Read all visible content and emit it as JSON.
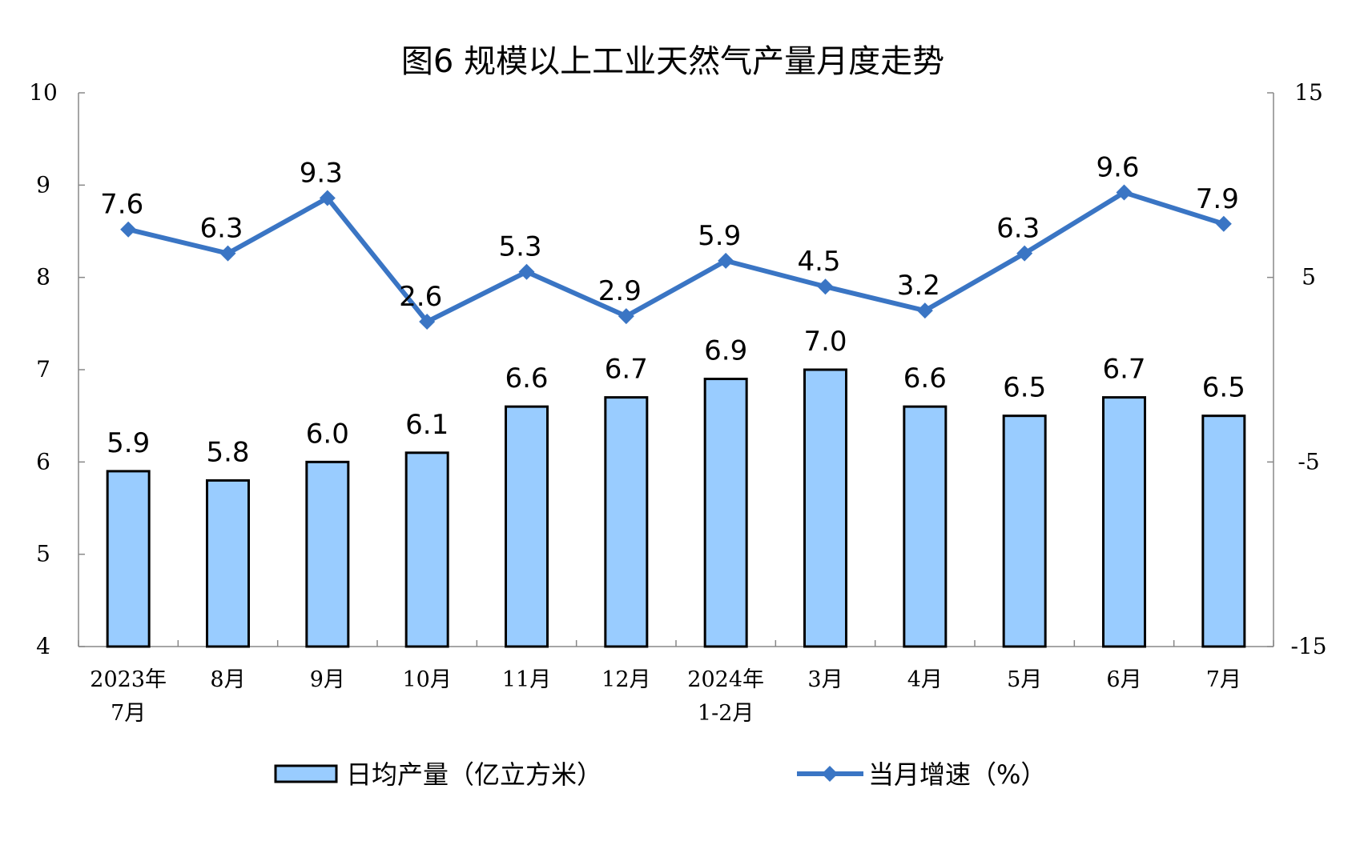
{
  "chart_data": {
    "type": "bar+line",
    "title": "图6  规模以上工业天然气产量月度走势",
    "categories": [
      [
        "2023年",
        "7月"
      ],
      [
        "8月"
      ],
      [
        "9月"
      ],
      [
        "10月"
      ],
      [
        "11月"
      ],
      [
        "12月"
      ],
      [
        "2024年",
        "1-2月"
      ],
      [
        "3月"
      ],
      [
        "4月"
      ],
      [
        "5月"
      ],
      [
        "6月"
      ],
      [
        "7月"
      ]
    ],
    "series": [
      {
        "name": "日均产量（亿立方米）",
        "type": "bar",
        "axis": "left",
        "color": "#99CCFF",
        "values": [
          5.9,
          5.8,
          6.0,
          6.1,
          6.6,
          6.7,
          6.9,
          7.0,
          6.6,
          6.5,
          6.7,
          6.5
        ]
      },
      {
        "name": "当月增速（%）",
        "type": "line",
        "axis": "right",
        "color": "#3A75C4",
        "values": [
          7.6,
          6.3,
          9.3,
          2.6,
          5.3,
          2.9,
          5.9,
          4.5,
          3.2,
          6.3,
          9.6,
          7.9
        ]
      }
    ],
    "left_axis": {
      "range": [
        4,
        10
      ],
      "ticks": [
        4,
        5,
        6,
        7,
        8,
        9,
        10
      ]
    },
    "right_axis": {
      "range": [
        -15,
        15
      ],
      "ticks": [
        -15,
        -5,
        5,
        15
      ]
    },
    "grid": false,
    "legend_placement": "bottom"
  }
}
